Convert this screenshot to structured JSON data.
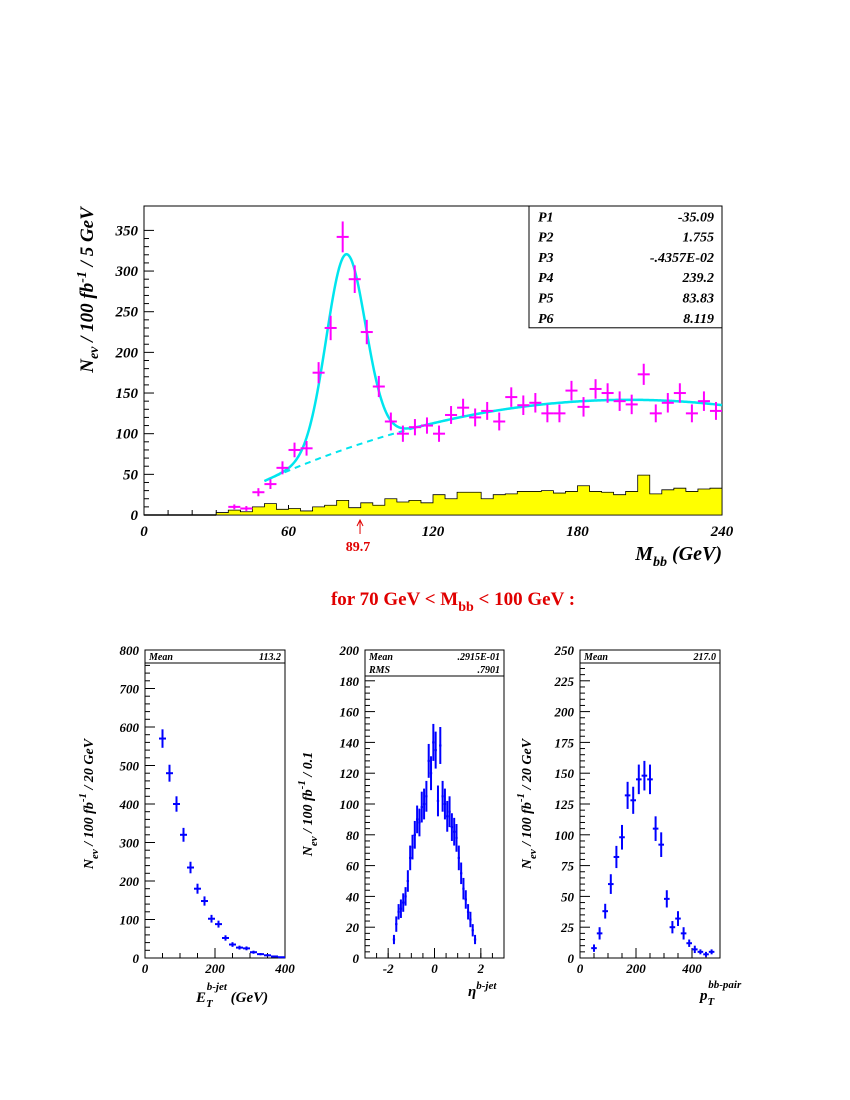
{
  "caption": {
    "prefix": "for  70 GeV < M",
    "sub": "bb",
    "suffix": " < 100 GeV  :"
  },
  "peak_marker": "89.7",
  "chart_data": [
    {
      "type": "histogram+fit",
      "xlabel": {
        "main": "M",
        "sub": "bb",
        "unit": " (GeV)"
      },
      "ylabel": {
        "main": "N",
        "sub": "ev",
        "mid": " / 100 fb",
        "sup": "-1",
        "end": " / 5 GeV"
      },
      "xlim": [
        0,
        240
      ],
      "ylim": [
        0,
        380
      ],
      "xticks": [
        0,
        60,
        120,
        180,
        240
      ],
      "yticks": [
        0,
        50,
        100,
        150,
        200,
        250,
        300,
        350
      ],
      "colors": {
        "points": "#ff00ff",
        "fit": "#00e5ee",
        "background_fill": "#ffff00"
      },
      "fit_params": [
        {
          "name": "P1",
          "value": "-35.09"
        },
        {
          "name": "P2",
          "value": "1.755"
        },
        {
          "name": "P3",
          "value": "-.4357E-02"
        },
        {
          "name": "P4",
          "value": "239.2"
        },
        {
          "name": "P5",
          "value": "83.83"
        },
        {
          "name": "P6",
          "value": "8.119"
        }
      ],
      "fit_start": 50,
      "points": {
        "x": [
          37.5,
          42.5,
          47.5,
          52.5,
          57.5,
          62.5,
          67.5,
          72.5,
          77.5,
          82.5,
          87.5,
          92.5,
          97.5,
          102.5,
          107.5,
          112.5,
          117.5,
          122.5,
          127.5,
          132.5,
          137.5,
          142.5,
          147.5,
          152.5,
          157.5,
          162.5,
          167.5,
          172.5,
          177.5,
          182.5,
          187.5,
          192.5,
          197.5,
          202.5,
          207.5,
          212.5,
          217.5,
          222.5,
          227.5,
          232.5,
          237.5
        ],
        "y": [
          10,
          8,
          28,
          38,
          58,
          80,
          82,
          175,
          230,
          342,
          290,
          225,
          158,
          115,
          100,
          108,
          110,
          100,
          123,
          132,
          120,
          128,
          115,
          145,
          135,
          138,
          125,
          125,
          153,
          133,
          155,
          150,
          140,
          136,
          173,
          125,
          138,
          150,
          125,
          140,
          128
        ],
        "err": [
          3,
          3,
          5,
          6,
          8,
          9,
          9,
          13,
          15,
          19,
          17,
          15,
          13,
          11,
          10,
          10,
          10,
          10,
          11,
          11,
          11,
          11,
          11,
          12,
          12,
          12,
          11,
          11,
          12,
          12,
          12,
          12,
          12,
          12,
          13,
          11,
          12,
          12,
          11,
          12,
          11
        ]
      },
      "background_hist": {
        "edges": [
          30,
          35,
          40,
          45,
          50,
          55,
          60,
          65,
          70,
          75,
          80,
          85,
          90,
          95,
          100,
          105,
          110,
          115,
          120,
          125,
          130,
          135,
          140,
          145,
          150,
          155,
          160,
          165,
          170,
          175,
          180,
          185,
          190,
          195,
          200,
          205,
          210,
          215,
          220,
          225,
          230,
          235,
          240
        ],
        "values": [
          3,
          6,
          4,
          10,
          14,
          7,
          8,
          5,
          10,
          12,
          18,
          9,
          15,
          12,
          20,
          16,
          18,
          15,
          25,
          20,
          28,
          28,
          20,
          25,
          26,
          29,
          29,
          30,
          27,
          29,
          36,
          29,
          28,
          25,
          29,
          49,
          26,
          31,
          33,
          29,
          32,
          33
        ]
      }
    },
    {
      "type": "histogram-errorbars",
      "xlabel": {
        "main": "E",
        "sub": "T",
        "sup": "b-jet",
        "unit": " (GeV)"
      },
      "ylabel": {
        "main": "N",
        "sub": "ev",
        "mid": " / 100 fb",
        "sup": "-1",
        "end": " / 20 GeV"
      },
      "xlim": [
        0,
        400
      ],
      "ylim": [
        0,
        800
      ],
      "xticks": [
        0,
        200,
        400
      ],
      "yticks": [
        0,
        100,
        200,
        300,
        400,
        500,
        600,
        700,
        800
      ],
      "stats": [
        {
          "label": "Mean",
          "value": "113.2"
        }
      ],
      "points": {
        "x": [
          50,
          70,
          90,
          110,
          130,
          150,
          170,
          190,
          210,
          230,
          250,
          270,
          290,
          310,
          330,
          350,
          370,
          390
        ],
        "y": [
          570,
          480,
          400,
          320,
          235,
          180,
          148,
          102,
          88,
          52,
          35,
          27,
          25,
          15,
          10,
          7,
          4,
          2
        ],
        "err": [
          24,
          22,
          20,
          18,
          15,
          13,
          12,
          10,
          9,
          7,
          6,
          5,
          5,
          4,
          3,
          3,
          2,
          1
        ]
      },
      "color": "#0000ff"
    },
    {
      "type": "histogram-errorbars",
      "xlabel": {
        "main": "η",
        "sup": "b-jet"
      },
      "ylabel": {
        "main": "N",
        "sub": "ev",
        "mid": " / 100 fb",
        "sup": "-1",
        "end": " / 0.1"
      },
      "xlim": [
        -3,
        3
      ],
      "ylim": [
        0,
        200
      ],
      "xticks": [
        -2,
        0,
        2
      ],
      "yticks": [
        0,
        20,
        40,
        60,
        80,
        100,
        120,
        140,
        160,
        180,
        200
      ],
      "stats": [
        {
          "label": "Mean",
          "value": ".2915E-01"
        },
        {
          "label": "RMS",
          "value": ".7901"
        }
      ],
      "points": {
        "x": [
          -1.75,
          -1.65,
          -1.55,
          -1.45,
          -1.35,
          -1.25,
          -1.15,
          -1.05,
          -0.95,
          -0.85,
          -0.75,
          -0.65,
          -0.55,
          -0.45,
          -0.35,
          -0.25,
          -0.15,
          -0.05,
          0.05,
          0.15,
          0.25,
          0.35,
          0.45,
          0.55,
          0.65,
          0.75,
          0.85,
          0.95,
          1.05,
          1.15,
          1.25,
          1.35,
          1.45,
          1.55,
          1.65,
          1.75
        ],
        "y": [
          12,
          22,
          30,
          32,
          36,
          40,
          50,
          65,
          72,
          80,
          90,
          88,
          98,
          100,
          105,
          128,
          120,
          140,
          135,
          102,
          138,
          105,
          100,
          92,
          95,
          85,
          82,
          78,
          65,
          55,
          45,
          38,
          30,
          25,
          18,
          12
        ],
        "err": [
          3,
          5,
          5,
          6,
          6,
          6,
          7,
          8,
          8,
          9,
          9,
          9,
          10,
          10,
          10,
          11,
          11,
          12,
          12,
          10,
          12,
          10,
          10,
          10,
          10,
          9,
          9,
          9,
          8,
          7,
          7,
          6,
          5,
          5,
          4,
          3
        ]
      },
      "color": "#0000ff"
    },
    {
      "type": "histogram-errorbars",
      "xlabel": {
        "main": "p",
        "sub": "T",
        "sup": "bb-pair"
      },
      "ylabel": {
        "main": "N",
        "sub": "ev",
        "mid": " / 100 fb",
        "sup": "-1",
        "end": " / 20 GeV"
      },
      "xlim": [
        0,
        500
      ],
      "ylim": [
        0,
        250
      ],
      "xticks": [
        0,
        200,
        400
      ],
      "yticks": [
        0,
        25,
        50,
        75,
        100,
        125,
        150,
        175,
        200,
        225,
        250
      ],
      "stats": [
        {
          "label": "Mean",
          "value": "217.0"
        }
      ],
      "points": {
        "x": [
          10,
          30,
          50,
          70,
          90,
          110,
          130,
          150,
          170,
          190,
          210,
          230,
          250,
          270,
          290,
          310,
          330,
          350,
          370,
          390,
          410,
          430,
          450,
          470,
          490
        ],
        "y": [
          0,
          0,
          8,
          20,
          38,
          60,
          82,
          98,
          132,
          128,
          145,
          148,
          145,
          105,
          92,
          48,
          25,
          32,
          20,
          12,
          7,
          5,
          3,
          5,
          0
        ],
        "err": [
          0,
          0,
          3,
          5,
          6,
          8,
          9,
          10,
          11,
          11,
          12,
          12,
          12,
          10,
          10,
          7,
          5,
          6,
          5,
          3,
          3,
          2,
          2,
          2,
          0
        ]
      },
      "color": "#0000ff"
    }
  ]
}
